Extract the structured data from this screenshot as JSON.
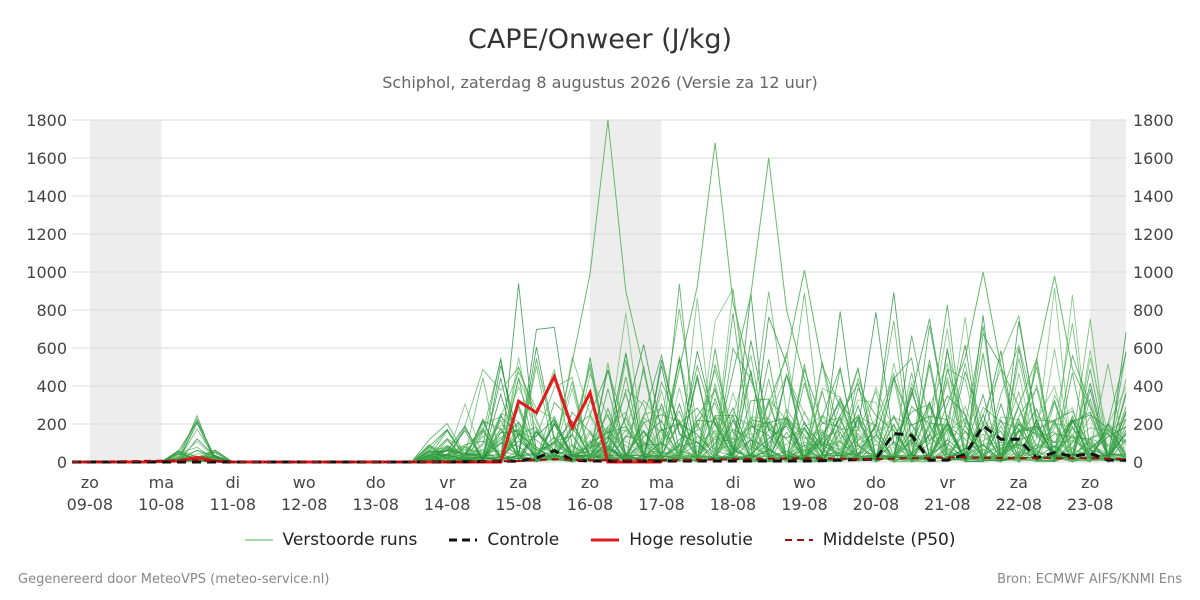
{
  "header": {
    "title": "CAPE/Onweer (J/kg)",
    "subtitle": "Schiphol, zaterdag  8 augustus 2026 (Versie za 12 uur)"
  },
  "footer": {
    "left": "Gegenereerd door MeteoVPS (meteo-service.nl)",
    "right": "Bron: ECMWF AIFS/KNMI Ens"
  },
  "legend": [
    {
      "label": "Verstoorde runs",
      "color": "#4caf50",
      "style": "solid-thin"
    },
    {
      "label": "Controle",
      "color": "#111111",
      "style": "dashed"
    },
    {
      "label": "Hoge resolutie",
      "color": "#e31a1c",
      "style": "solid-thick"
    },
    {
      "label": "Middelste (P50)",
      "color": "#a01010",
      "style": "dashed"
    }
  ],
  "chart_data": {
    "type": "line",
    "title": "CAPE/Onweer (J/kg)",
    "ylim": [
      0,
      1800
    ],
    "yticks": [
      0,
      200,
      400,
      600,
      800,
      1000,
      1200,
      1400,
      1600,
      1800
    ],
    "grid": true,
    "legend_position": "bottom",
    "x_range_days": [
      -0.25,
      14.5
    ],
    "xticks": [
      {
        "day": "zo",
        "date": "09-08"
      },
      {
        "day": "ma",
        "date": "10-08"
      },
      {
        "day": "di",
        "date": "11-08"
      },
      {
        "day": "wo",
        "date": "12-08"
      },
      {
        "day": "do",
        "date": "13-08"
      },
      {
        "day": "vr",
        "date": "14-08"
      },
      {
        "day": "za",
        "date": "15-08"
      },
      {
        "day": "zo",
        "date": "16-08"
      },
      {
        "day": "ma",
        "date": "17-08"
      },
      {
        "day": "di",
        "date": "18-08"
      },
      {
        "day": "wo",
        "date": "19-08"
      },
      {
        "day": "do",
        "date": "20-08"
      },
      {
        "day": "vr",
        "date": "21-08"
      },
      {
        "day": "za",
        "date": "22-08"
      },
      {
        "day": "zo",
        "date": "23-08"
      }
    ],
    "series": [
      {
        "name": "Hoge resolutie",
        "color": "#e31a1c",
        "x": [
          -0.25,
          0.25,
          0.75,
          1.25,
          1.5,
          1.75,
          2,
          3,
          4,
          5,
          5.75,
          6,
          6.25,
          6.5,
          6.75,
          7,
          7.25,
          7.5,
          7.75,
          8
        ],
        "values": [
          0,
          0,
          0,
          5,
          25,
          5,
          0,
          0,
          0,
          0,
          0,
          320,
          260,
          450,
          180,
          365,
          0,
          0,
          0,
          0
        ]
      },
      {
        "name": "Controle",
        "color": "#111111",
        "x": [
          -0.25,
          1,
          2,
          3,
          4,
          5,
          6,
          6.25,
          6.5,
          6.75,
          7,
          8,
          9,
          10,
          10.5,
          11,
          11.25,
          11.5,
          11.75,
          12,
          12.25,
          12.5,
          12.75,
          13,
          13.25,
          13.5,
          13.75,
          14,
          14.25,
          14.5
        ],
        "values": [
          0,
          0,
          0,
          0,
          0,
          0,
          5,
          20,
          60,
          10,
          5,
          5,
          5,
          5,
          10,
          15,
          150,
          140,
          10,
          10,
          40,
          190,
          120,
          120,
          20,
          50,
          30,
          45,
          10,
          10
        ]
      },
      {
        "name": "Middelste (P50)",
        "color": "#a01010",
        "x": [
          -0.25,
          1.5,
          2,
          5,
          6,
          6.5,
          7,
          8,
          9,
          10,
          11,
          12,
          13,
          14,
          14.5
        ],
        "values": [
          0,
          10,
          0,
          0,
          5,
          15,
          10,
          10,
          15,
          20,
          15,
          25,
          20,
          20,
          15
        ]
      },
      {
        "name": "Verstoorde runs",
        "color": "#4caf50",
        "members": 50,
        "peaks": [
          {
            "x": 7.25,
            "value": 1800
          },
          {
            "x": 8.75,
            "value": 1680
          },
          {
            "x": 9.5,
            "value": 1600
          },
          {
            "x": 10,
            "value": 1010
          },
          {
            "x": 12.5,
            "value": 1000
          },
          {
            "x": 13.5,
            "value": 980
          }
        ]
      }
    ]
  }
}
